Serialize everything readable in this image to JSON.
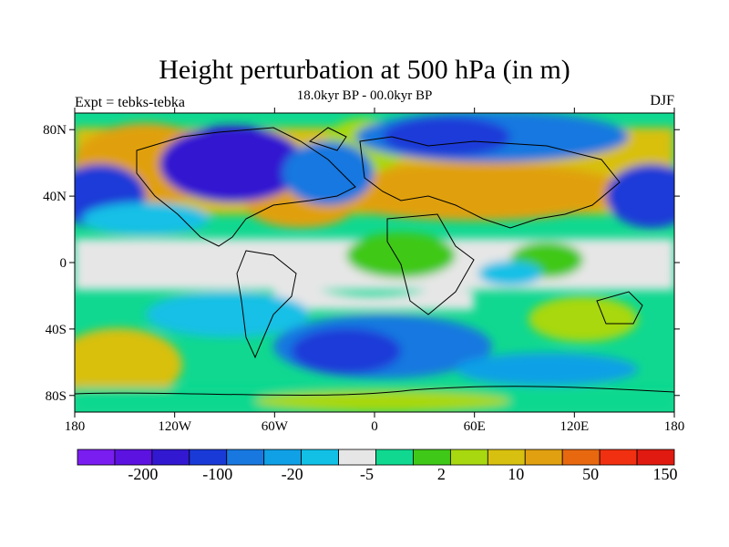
{
  "title": "Height perturbation at 500 hPa (in m)",
  "subtitle": "18.0kyr BP - 00.0kyr BP",
  "left_label": "Expt = tebks-tebka",
  "right_label": "DJF",
  "map": {
    "lon_range": [
      -180,
      180
    ],
    "lat_range": [
      -90,
      90
    ],
    "lat_ticks": [
      {
        "value": 80,
        "label": "80N"
      },
      {
        "value": 40,
        "label": "40N"
      },
      {
        "value": 0,
        "label": "0"
      },
      {
        "value": -40,
        "label": "40S"
      },
      {
        "value": -80,
        "label": "80S"
      }
    ],
    "lon_ticks": [
      {
        "value": -180,
        "label": "180"
      },
      {
        "value": -120,
        "label": "120W"
      },
      {
        "value": -60,
        "label": "60W"
      },
      {
        "value": 0,
        "label": "0"
      },
      {
        "value": 60,
        "label": "60E"
      },
      {
        "value": 120,
        "label": "120E"
      },
      {
        "value": 180,
        "label": "180"
      }
    ]
  },
  "colorbar": {
    "colors": [
      "#7a1df0",
      "#5c12e0",
      "#3218d0",
      "#1a3ad8",
      "#1878e0",
      "#10a0e6",
      "#12c0e6",
      "#e6e6e6",
      "#10d890",
      "#40c818",
      "#a8d810",
      "#d8c010",
      "#e0a010",
      "#e86810",
      "#f03010",
      "#e01a10"
    ],
    "labels": [
      {
        "after_box": 2,
        "text": "-200"
      },
      {
        "after_box": 4,
        "text": "-100"
      },
      {
        "after_box": 6,
        "text": "-20"
      },
      {
        "after_box": 8,
        "text": "-5"
      },
      {
        "after_box": 10,
        "text": "2"
      },
      {
        "after_box": 12,
        "text": "10"
      },
      {
        "after_box": 14,
        "text": "50"
      },
      {
        "after_box": 16,
        "text": "150"
      }
    ]
  }
}
